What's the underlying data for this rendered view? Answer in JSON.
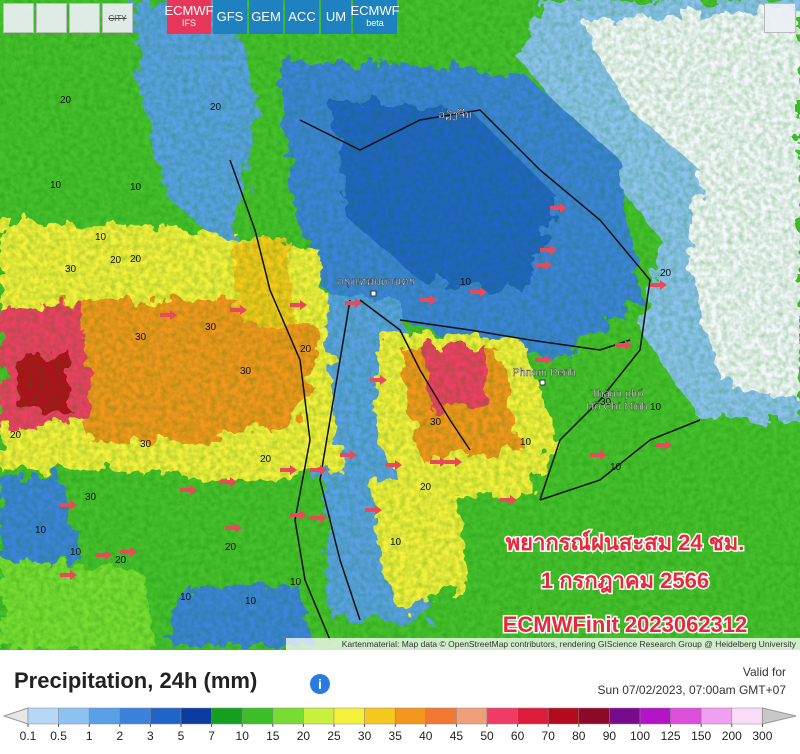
{
  "toolbar": {
    "city_button": "CITY"
  },
  "models": [
    {
      "label": "ECMWF",
      "sublabel": "IFS",
      "active": true
    },
    {
      "label": "GFS",
      "active": false
    },
    {
      "label": "GEM",
      "active": false
    },
    {
      "label": "ACC",
      "active": false
    },
    {
      "label": "UM",
      "active": false
    },
    {
      "label": "ECMWF",
      "sublabel": "beta",
      "active": false
    }
  ],
  "overlay": {
    "line1": "พยากรณ์ฝนสะสม 24 ชม.",
    "line2": "1 กรกฎาคม 2566",
    "line3": "ECMWFinit 2023062312"
  },
  "places": [
    "ວຽງຈັນ",
    "กรุงเทพมหานคร",
    "Phnom Penh",
    "Thành phố",
    "Hồ Chí Minh"
  ],
  "contour_labels": [
    "20",
    "10",
    "10",
    "20",
    "10",
    "20",
    "30",
    "20",
    "30",
    "30",
    "30",
    "20",
    "30",
    "20",
    "30",
    "20",
    "10",
    "10",
    "20",
    "30",
    "20",
    "30",
    "10",
    "10",
    "20",
    "10",
    "10",
    "10",
    "20",
    "10",
    "10",
    "10"
  ],
  "attribution": "Kartenmaterial: Map data © OpenStreetMap contributors, rendering GIScience Research Group @ Heidelberg University",
  "legend": {
    "title": "Precipitation, 24h (mm)",
    "info_icon": "i",
    "valid_label": "Valid for",
    "valid_time": "Sun 07/02/2023, 07:00am GMT+07",
    "ticks": [
      0.1,
      0.5,
      1,
      2,
      3,
      5,
      7,
      10,
      15,
      20,
      25,
      30,
      35,
      40,
      45,
      50,
      60,
      70,
      80,
      90,
      100,
      125,
      150,
      200,
      300
    ],
    "colors": [
      "#e6e6e6",
      "#b4d8f5",
      "#8cc2f0",
      "#5aa0e6",
      "#3c82dc",
      "#2064c8",
      "#0a3ca0",
      "#14a01e",
      "#3cbe28",
      "#78dc32",
      "#c8f03c",
      "#f5f03c",
      "#f5c81e",
      "#f5961e",
      "#f07832",
      "#f0a078",
      "#f03c64",
      "#dc1e3c",
      "#b40a1e",
      "#8c0a28",
      "#780a8c",
      "#b414c8",
      "#dc50dc",
      "#f0a0f0",
      "#f8dcf8",
      "#c8c8c8"
    ]
  }
}
